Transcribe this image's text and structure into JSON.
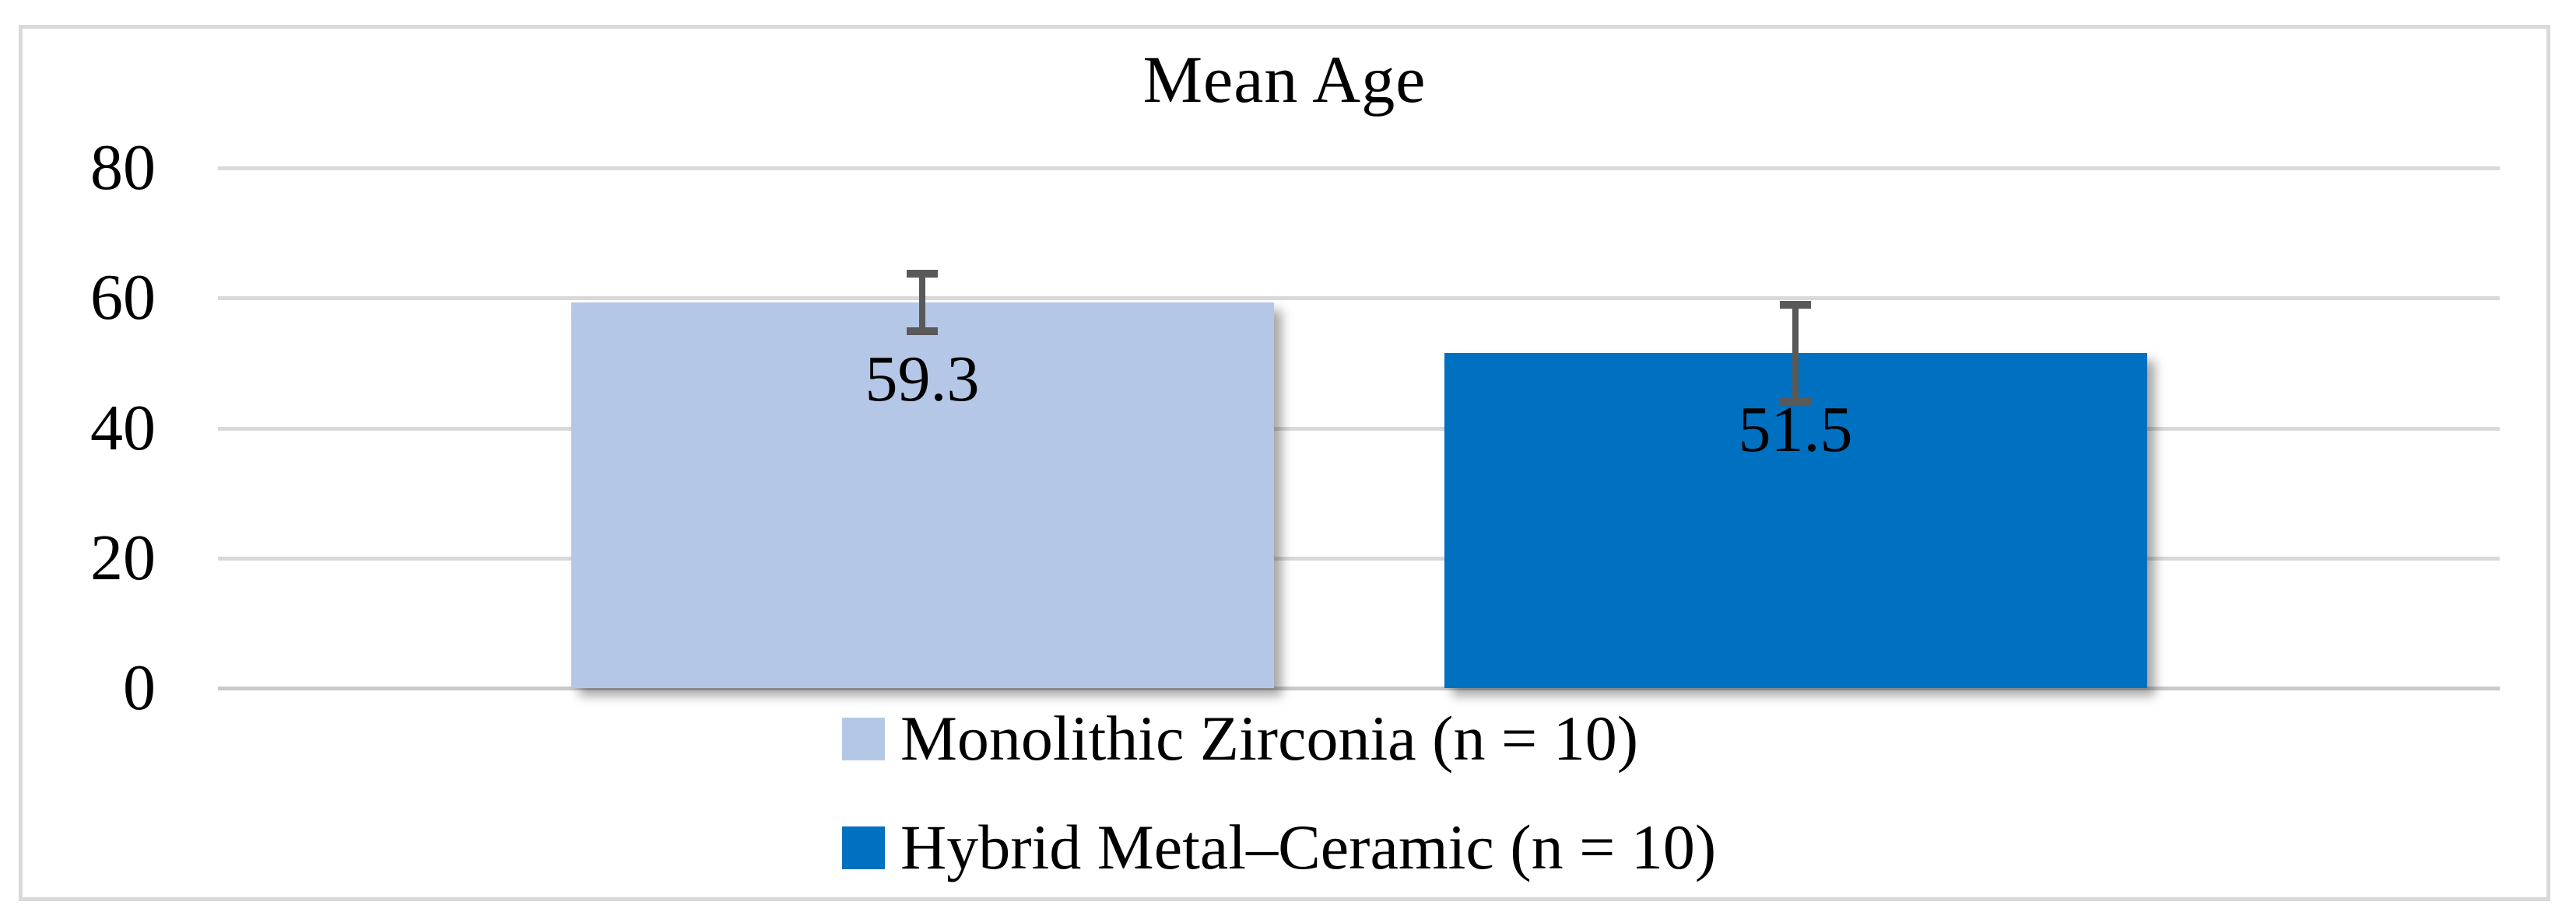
{
  "chart_data": {
    "type": "bar",
    "title": "Mean Age",
    "categories": [
      ""
    ],
    "series": [
      {
        "name": "Monolithic Zirconia (n = 10)",
        "values": [
          59.3
        ],
        "label": "59.3",
        "error": 5,
        "color": "#B4C7E7"
      },
      {
        "name": "Hybrid Metal–Ceramic (n = 10)",
        "values": [
          51.5
        ],
        "label": "51.5",
        "error": 8,
        "color": "#0070C0"
      }
    ],
    "ylim": [
      0,
      80
    ],
    "yticks": [
      "0",
      "20",
      "40",
      "60",
      "80"
    ],
    "grid": true,
    "legend_position": "bottom",
    "error_bars": true
  },
  "colors": {
    "gridline": "#D9D9D9",
    "axis_line": "#C9C9C9",
    "frame_border": "#D9D9D9",
    "error_bar": "#595959",
    "text": "#000000",
    "background": "#FFFFFF"
  }
}
